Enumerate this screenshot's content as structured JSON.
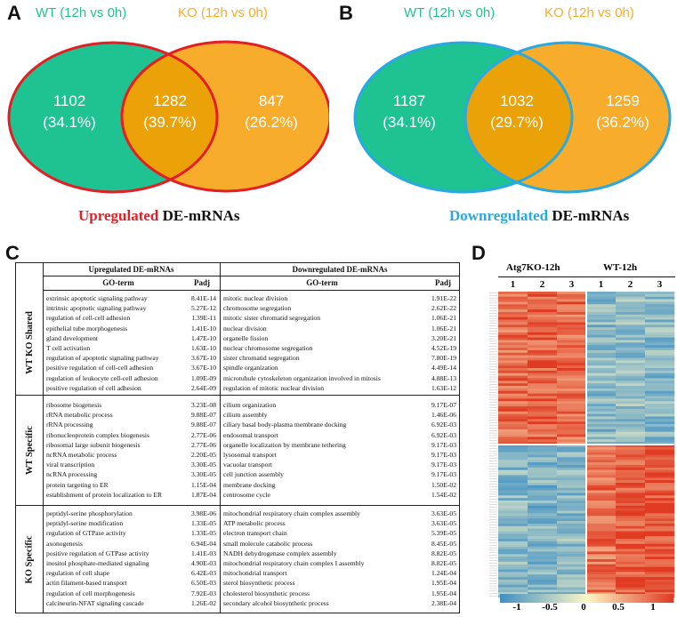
{
  "panel_a": {
    "letter": "A",
    "left_label": "WT (12h vs 0h)",
    "right_label": "KO (12h vs 0h)",
    "left_count": "1102",
    "left_pct": "(34.1%)",
    "overlap_count": "1282",
    "overlap_pct": "(39.7%)",
    "right_count": "847",
    "right_pct": "(26.2%)",
    "caption_colored": "Upregulated",
    "caption_rest": " DE-mRNAs",
    "colors": {
      "left_fill": "#1fc391",
      "right_fill": "#f7ad2b",
      "overlap_fill": "#f2a70f",
      "outline": "#e31e24",
      "caption": "#e31e24"
    }
  },
  "panel_b": {
    "letter": "B",
    "left_label": "WT (12h vs 0h)",
    "right_label": "KO (12h vs 0h)",
    "left_count": "1187",
    "left_pct": "(34.1%)",
    "overlap_count": "1032",
    "overlap_pct": "(29.7%)",
    "right_count": "1259",
    "right_pct": "(36.2%)",
    "caption_colored": "Downregulated",
    "caption_rest": " DE-mRNAs",
    "colors": {
      "left_fill": "#1fc391",
      "right_fill": "#f7ad2b",
      "overlap_fill": "#f2a70f",
      "outline": "#29a9e1",
      "caption": "#29a9e1"
    }
  },
  "panel_c": {
    "letter": "C",
    "up_header": "Upregulated DE-mRNAs",
    "down_header": "Downregulated DE-mRNAs",
    "go_term": "GO-term",
    "padj": "Padj",
    "groups": [
      {
        "name": "WT KO Shared",
        "up": [
          {
            "term": "extrinsic apoptotic signaling pathway",
            "p": "8.41E-14"
          },
          {
            "term": "intrinsic apoptotic signaling pathway",
            "p": "5.27E-12"
          },
          {
            "term": "regulation of cell-cell adhesion",
            "p": "1.39E-11"
          },
          {
            "term": "epithelial tube morphogenesis",
            "p": "1.41E-10"
          },
          {
            "term": "gland development",
            "p": "1.47E-10"
          },
          {
            "term": "T cell activation",
            "p": "1.63E-10"
          },
          {
            "term": "regulation of apoptotic signaling pathway",
            "p": "3.67E-10"
          },
          {
            "term": "positive regulation of cell-cell adhesion",
            "p": "3.67E-10"
          },
          {
            "term": "regulation of leukocyte cell-cell adhesion",
            "p": "1.09E-09"
          },
          {
            "term": "positive regulation of cell adhesion",
            "p": "2.64E-09"
          }
        ],
        "down": [
          {
            "term": "mitotic nuclear division",
            "p": "1.91E-22"
          },
          {
            "term": "chromosome segregation",
            "p": "2.62E-22"
          },
          {
            "term": "mitotic sister chromatid segregation",
            "p": "1.06E-21"
          },
          {
            "term": "nuclear division",
            "p": "1.06E-21"
          },
          {
            "term": "organelle fission",
            "p": "3.20E-21"
          },
          {
            "term": "nuclear chromosome segregation",
            "p": "4.52E-19"
          },
          {
            "term": "sister chromatid segregation",
            "p": "7.80E-19"
          },
          {
            "term": "spindle organization",
            "p": "4.49E-14"
          },
          {
            "term": "microtubule cytoskeleton organization involved in mitosis",
            "p": "4.88E-13"
          },
          {
            "term": "regulation of mitotic nuclear division",
            "p": "1.63E-12"
          }
        ]
      },
      {
        "name": "WT Specific",
        "up": [
          {
            "term": "ribosome biogenesis",
            "p": "3.23E-08"
          },
          {
            "term": "rRNA metabolic process",
            "p": "9.88E-07"
          },
          {
            "term": "rRNA processing",
            "p": "9.88E-07"
          },
          {
            "term": "ribonucleoprotein complex biogenesis",
            "p": "2.77E-06"
          },
          {
            "term": "ribosomal large subunit biogenesis",
            "p": "2.77E-06"
          },
          {
            "term": "ncRNA metabolic process",
            "p": "2.20E-05"
          },
          {
            "term": "viral transcription",
            "p": "3.30E-05"
          },
          {
            "term": "ncRNA processing",
            "p": "3.30E-05"
          },
          {
            "term": "protein targeting to ER",
            "p": "1.15E-04"
          },
          {
            "term": "establishment of protein localization to ER",
            "p": "1.87E-04"
          }
        ],
        "down": [
          {
            "term": "cilium organization",
            "p": "9.17E-07"
          },
          {
            "term": "cilium assembly",
            "p": "1.46E-06"
          },
          {
            "term": "ciliary basal body-plasma membrane docking",
            "p": "6.92E-03"
          },
          {
            "term": "endosomal transport",
            "p": "6.92E-03"
          },
          {
            "term": "organelle localization by membrane tethering",
            "p": "9.17E-03"
          },
          {
            "term": "lysosomal transport",
            "p": "9.17E-03"
          },
          {
            "term": "vacuolar transport",
            "p": "9.17E-03"
          },
          {
            "term": "cell junction assembly",
            "p": "9.17E-03"
          },
          {
            "term": "membrane docking",
            "p": "1.50E-02"
          },
          {
            "term": "centrosome cycle",
            "p": "1.54E-02"
          }
        ]
      },
      {
        "name": "KO Specific",
        "up": [
          {
            "term": "peptidyl-serine phosphorylation",
            "p": "3.98E-06"
          },
          {
            "term": "peptidyl-serine modification",
            "p": "1.33E-05"
          },
          {
            "term": "regulation of GTPase activity",
            "p": "1.33E-05"
          },
          {
            "term": "axonogenesis",
            "p": "6.94E-04"
          },
          {
            "term": "positive regulation of GTPase activity",
            "p": "1.41E-03"
          },
          {
            "term": "inositol phosphate-mediated signaling",
            "p": "4.90E-03"
          },
          {
            "term": "regulation of cell shape",
            "p": "6.42E-03"
          },
          {
            "term": "actin filament-based transport",
            "p": "6.50E-03"
          },
          {
            "term": "regulation of cell morphogenesis",
            "p": "7.92E-03"
          },
          {
            "term": "calcineurin-NFAT signaling cascade",
            "p": "1.26E-02"
          }
        ],
        "down": [
          {
            "term": "mitochondrial respiratory chain complex assembly",
            "p": "3.63E-05"
          },
          {
            "term": "ATP metabolic process",
            "p": "3.63E-05"
          },
          {
            "term": "electron transport chain",
            "p": "5.39E-05"
          },
          {
            "term": "small molecule catabolic process",
            "p": "8.45E-05"
          },
          {
            "term": "NADH dehydrogenase complex assembly",
            "p": "8.82E-05"
          },
          {
            "term": "mitochondrial respiratory chain complex I assembly",
            "p": "8.82E-05"
          },
          {
            "term": "mitochondrial transport",
            "p": "1.24E-04"
          },
          {
            "term": "sterol biosynthetic process",
            "p": "1.95E-04"
          },
          {
            "term": "cholesterol biosynthetic process",
            "p": "1.95E-04"
          },
          {
            "term": "secondary alcohol biosynthetic process",
            "p": "2.38E-04"
          }
        ]
      }
    ]
  },
  "panel_d": {
    "letter": "D",
    "group1_label": "Atg7KO-12h",
    "group2_label": "WT-12h",
    "columns": [
      "1",
      "2",
      "3",
      "1",
      "2",
      "3"
    ],
    "legend_ticks": [
      "-1",
      "-0.5",
      "0",
      "0.5",
      "1"
    ],
    "colors": {
      "low": "#3f8fc4",
      "mid": "#fcf6c6",
      "high": "#e03a22"
    }
  },
  "chart_data": [
    {
      "type": "venn",
      "title": "Upregulated DE-mRNAs",
      "sets": [
        "WT (12h vs 0h)",
        "KO (12h vs 0h)"
      ],
      "values": {
        "WT_only": 1102,
        "shared": 1282,
        "KO_only": 847
      },
      "percent": {
        "WT_only": 34.1,
        "shared": 39.7,
        "KO_only": 26.2
      }
    },
    {
      "type": "venn",
      "title": "Downregulated DE-mRNAs",
      "sets": [
        "WT (12h vs 0h)",
        "KO (12h vs 0h)"
      ],
      "values": {
        "WT_only": 1187,
        "shared": 1032,
        "KO_only": 1259
      },
      "percent": {
        "WT_only": 34.1,
        "shared": 29.7,
        "KO_only": 36.2
      }
    },
    {
      "type": "heatmap",
      "column_groups": [
        "Atg7KO-12h",
        "WT-12h"
      ],
      "columns": [
        "1",
        "2",
        "3",
        "1",
        "2",
        "3"
      ],
      "row_blocks": [
        {
          "description": "up in Atg7KO-12h",
          "values_by_column": [
            0.75,
            0.8,
            0.75,
            -0.6,
            -0.55,
            -0.6
          ]
        },
        {
          "description": "up in WT-12h",
          "values_by_column": [
            -0.6,
            -0.65,
            -0.6,
            0.7,
            0.85,
            0.9
          ]
        }
      ],
      "scale": [
        -1,
        1
      ]
    }
  ]
}
